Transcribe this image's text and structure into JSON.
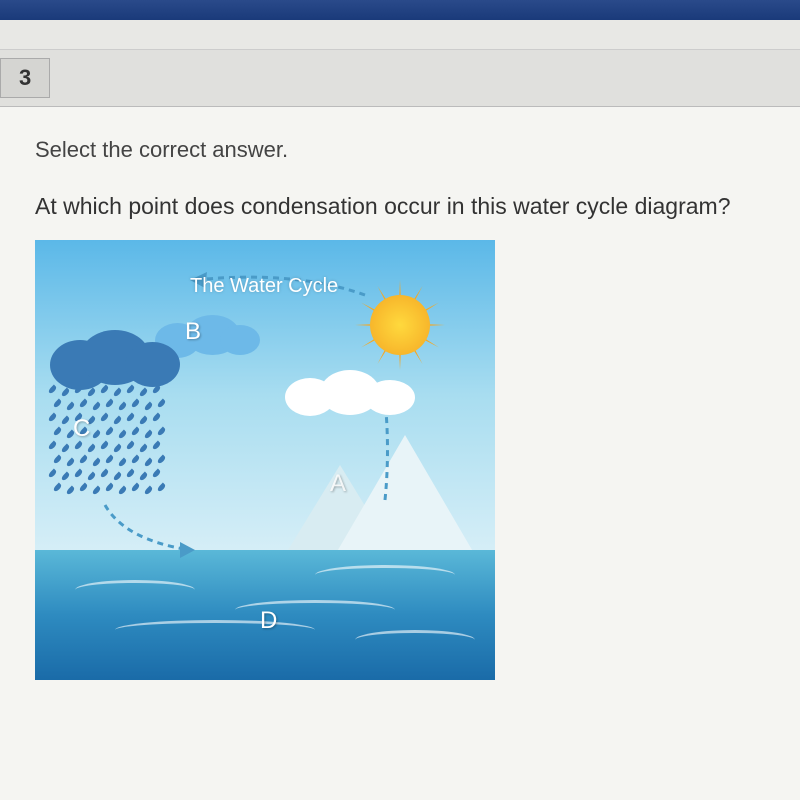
{
  "header": {
    "question_number": "3"
  },
  "question": {
    "instruction": "Select the correct answer.",
    "text": "At which point does condensation occur in this water cycle diagram?"
  },
  "diagram": {
    "title": "The Water Cycle",
    "labels": {
      "a": "A",
      "b": "B",
      "c": "C",
      "d": "D"
    },
    "colors": {
      "sky_top": "#5bb8e8",
      "sky_bottom": "#d5eef7",
      "water_top": "#5ab8d8",
      "water_bottom": "#1a6ba8",
      "sun_core": "#ffd93d",
      "sun_outer": "#f4a824",
      "dark_cloud": "#3a7ab5",
      "light_cloud": "#6db9e8",
      "white_cloud": "#ffffff",
      "mountain": "#e8f4f8",
      "arrow": "#4a9bc8"
    }
  }
}
